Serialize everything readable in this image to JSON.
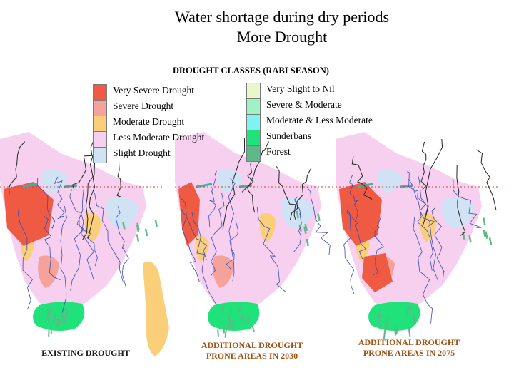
{
  "title": {
    "line1": "Water shortage during dry periods",
    "line2": "More Drought"
  },
  "legend": {
    "heading": "DROUGHT CLASSES (RABI SEASON)",
    "left_items": [
      {
        "label": "Very Severe Drought",
        "color": "#ef5a42"
      },
      {
        "label": "Severe Drought",
        "color": "#f4a29a"
      },
      {
        "label": "Moderate Drought",
        "color": "#fbcf7a"
      },
      {
        "label": "Less Moderate Drought",
        "color": "#f7d0ef"
      },
      {
        "label": "Slight Drought",
        "color": "#cfe3f4"
      }
    ],
    "right_items": [
      {
        "label": "Very Slight to Nil",
        "color": "#eaf7c8"
      },
      {
        "label": "Severe & Moderate",
        "color": "#9ef2c4"
      },
      {
        "label": "Moderate & Less Moderate",
        "color": "#7ff2f4"
      },
      {
        "label": "Sunderbans",
        "color": "#1fe27a"
      },
      {
        "label": "Forest",
        "color": "#5eb88a"
      }
    ]
  },
  "maps": [
    {
      "label_line1": "EXISTING DROUGHT",
      "label_line2": ""
    },
    {
      "label_line1": "ADDITIONAL DROUGHT",
      "label_line2": "PRONE AREAS IN 2030"
    },
    {
      "label_line1": "ADDITIONAL DROUGHT",
      "label_line2": "PRONE AREAS IN 2075"
    }
  ],
  "colors": {
    "border_line": "#d23c3c",
    "river": "#3b4bb0",
    "boundary": "#222222",
    "less_moderate": "#f7d0ef",
    "very_severe": "#ef5a42",
    "severe": "#f4a29a",
    "moderate": "#fbcf7a",
    "slight": "#cfe3f4",
    "sunderbans": "#1fe27a",
    "forest": "#5eb88a",
    "river_channel": "#35b7a8"
  }
}
